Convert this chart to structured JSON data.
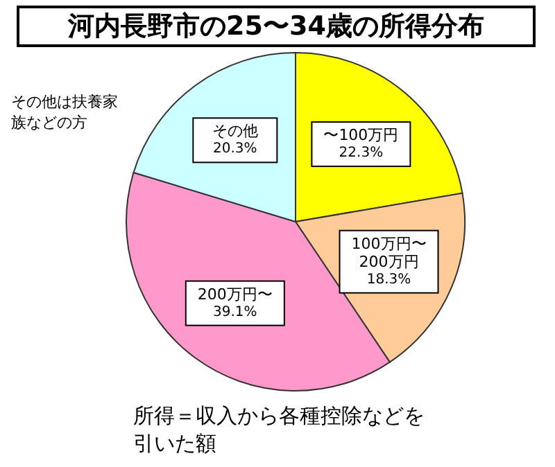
{
  "chart_data": {
    "type": "pie",
    "title": "河内長野市の25〜34歳の所得分布",
    "categories": [
      "〜100万円",
      "100万円〜200万円",
      "200万円〜",
      "その他"
    ],
    "values": [
      22.3,
      18.3,
      39.1,
      20.3
    ],
    "value_labels": [
      "22.3%",
      "18.3%",
      "39.1%",
      "20.3%"
    ],
    "colors": [
      "#ffff00",
      "#ffcc99",
      "#ff99cc",
      "#ccffff"
    ],
    "annotations": [
      "その他は扶養家族などの方",
      "所得＝収入から各種控除などを引いた額"
    ],
    "legend": false
  }
}
